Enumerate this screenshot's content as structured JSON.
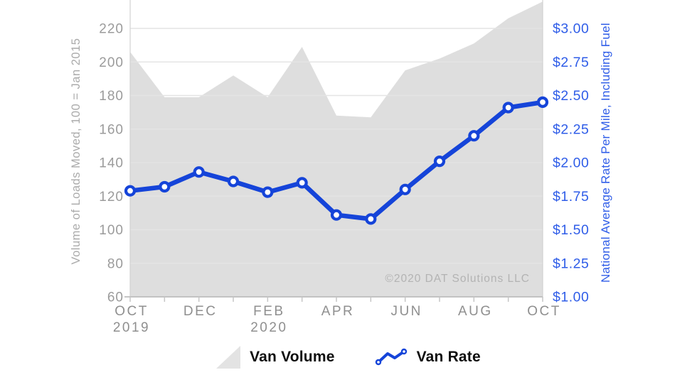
{
  "chart_data": {
    "type": "area",
    "subtype": "dual-axis area + line with markers",
    "categories": [
      "OCT 2019",
      "NOV 2019",
      "DEC 2019",
      "JAN 2020",
      "FEB 2020",
      "MAR 2020",
      "APR 2020",
      "MAY 2020",
      "JUN 2020",
      "JUL 2020",
      "AUG 2020",
      "SEP 2020",
      "OCT 2020"
    ],
    "x_tick_labels": [
      {
        "index": 0,
        "lines": [
          "OCT",
          "2019"
        ]
      },
      {
        "index": 2,
        "lines": [
          "DEC"
        ]
      },
      {
        "index": 4,
        "lines": [
          "FEB",
          "2020"
        ]
      },
      {
        "index": 6,
        "lines": [
          "APR"
        ]
      },
      {
        "index": 8,
        "lines": [
          "JUN"
        ]
      },
      {
        "index": 10,
        "lines": [
          "AUG"
        ]
      },
      {
        "index": 12,
        "lines": [
          "OCT"
        ]
      }
    ],
    "series": [
      {
        "name": "Van Volume",
        "type": "area",
        "axis": "left",
        "color": "#dedede",
        "values": [
          206,
          179,
          179,
          192,
          179,
          209,
          168,
          167,
          195,
          202,
          211,
          226,
          236
        ]
      },
      {
        "name": "Van Rate",
        "type": "line",
        "axis": "right",
        "color": "#1544d9",
        "marker": "circle-open",
        "values": [
          1.79,
          1.82,
          1.93,
          1.86,
          1.78,
          1.85,
          1.61,
          1.58,
          1.8,
          2.01,
          2.2,
          2.41,
          2.45
        ]
      }
    ],
    "left_axis": {
      "title": "Volume of Loads Moved, 100 = Jan 2015",
      "min": 60,
      "max": 220,
      "step": 20,
      "tick_labels": [
        "60",
        "80",
        "100",
        "120",
        "140",
        "160",
        "180",
        "200",
        "220"
      ],
      "label_color": "#9b9b9b",
      "title_color": "#ababab"
    },
    "right_axis": {
      "title": "National Average Rate Per Mile, Including Fuel",
      "min": 1.0,
      "max": 3.0,
      "step": 0.25,
      "tick_labels": [
        "$1.00",
        "$1.25",
        "$1.50",
        "$1.75",
        "$2.00",
        "$2.25",
        "$2.50",
        "$2.75",
        "$3.00"
      ],
      "label_color": "#2f5de8",
      "title_color": "#2f5de8"
    },
    "grid": true,
    "grid_color": "#e4e4e4",
    "watermark": "©2020 DAT Solutions LLC",
    "watermark_color": "#b3b3b3",
    "legend": {
      "position": "bottom",
      "items": [
        {
          "label": "Van Volume",
          "swatch": "area-triangle",
          "color": "#e3e3e3"
        },
        {
          "label": "Van Rate",
          "swatch": "line-markers",
          "color": "#1544d9"
        }
      ]
    }
  }
}
